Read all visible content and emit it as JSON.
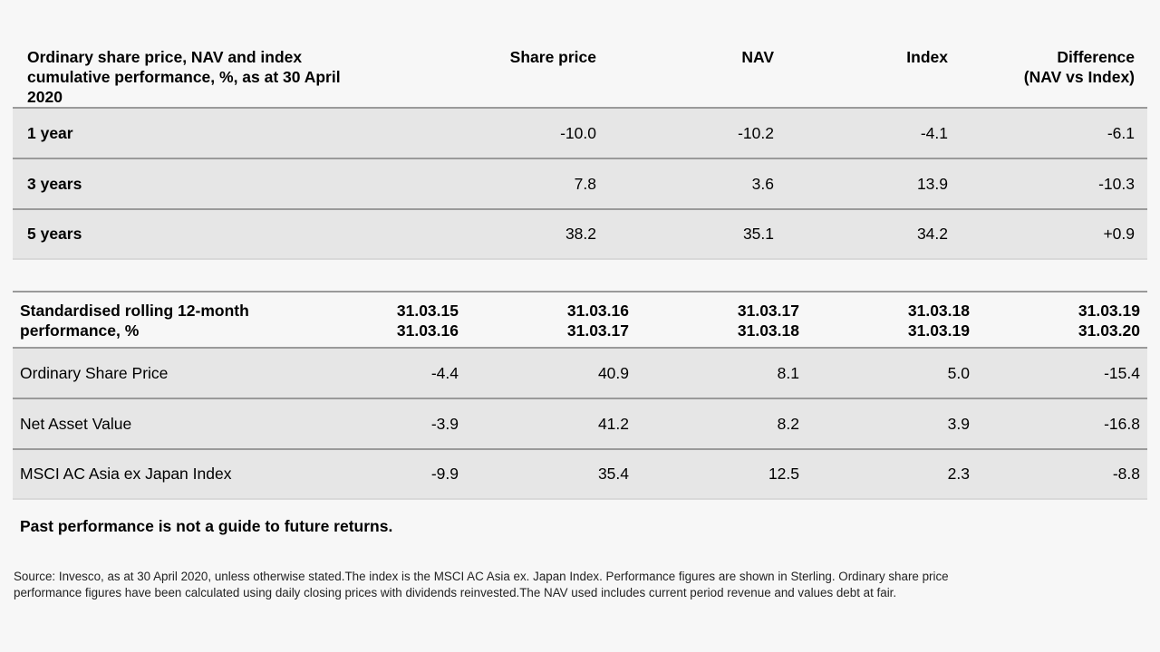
{
  "cumulative": {
    "header": {
      "title_line1": "Ordinary share price, NAV and index",
      "title_line2": "cumulative performance, %, as at 30 April 2020",
      "share_price": "Share price",
      "nav": "NAV",
      "index": "Index",
      "difference_line1": "Difference",
      "difference_line2": "(NAV vs Index)"
    },
    "rows": [
      {
        "period": "1 year",
        "share_price": "-10.0",
        "nav": "-10.2",
        "index": "-4.1",
        "difference": "-6.1"
      },
      {
        "period": "3 years",
        "share_price": "7.8",
        "nav": "3.6",
        "index": "13.9",
        "difference": "-10.3"
      },
      {
        "period": "5 years",
        "share_price": "38.2",
        "nav": "35.1",
        "index": "34.2",
        "difference": "+0.9"
      }
    ]
  },
  "rolling": {
    "header": {
      "title_line1": "Standardised rolling 12-month",
      "title_line2": "performance, %",
      "periods": [
        {
          "from": "31.03.15",
          "to": "31.03.16"
        },
        {
          "from": "31.03.16",
          "to": "31.03.17"
        },
        {
          "from": "31.03.17",
          "to": "31.03.18"
        },
        {
          "from": "31.03.18",
          "to": "31.03.19"
        },
        {
          "from": "31.03.19",
          "to": "31.03.20"
        }
      ]
    },
    "rows": [
      {
        "label": "Ordinary Share Price",
        "values": [
          "-4.4",
          "40.9",
          "8.1",
          "5.0",
          "-15.4"
        ]
      },
      {
        "label": "Net Asset Value",
        "values": [
          "-3.9",
          "41.2",
          "8.2",
          "3.9",
          "-16.8"
        ]
      },
      {
        "label": "MSCI AC Asia ex Japan Index",
        "values": [
          "-9.9",
          "35.4",
          "12.5",
          "2.3",
          "-8.8"
        ]
      }
    ]
  },
  "note": "Past performance is not a guide to future returns.",
  "source_line1": "Source: Invesco, as at 30 April 2020, unless otherwise stated.The index is the MSCI AC Asia ex. Japan Index.  Performance figures are shown in Sterling. Ordinary share price",
  "source_line2": "performance figures have been calculated using daily closing prices with dividends reinvested.The NAV used includes current period revenue and values debt at fair."
}
